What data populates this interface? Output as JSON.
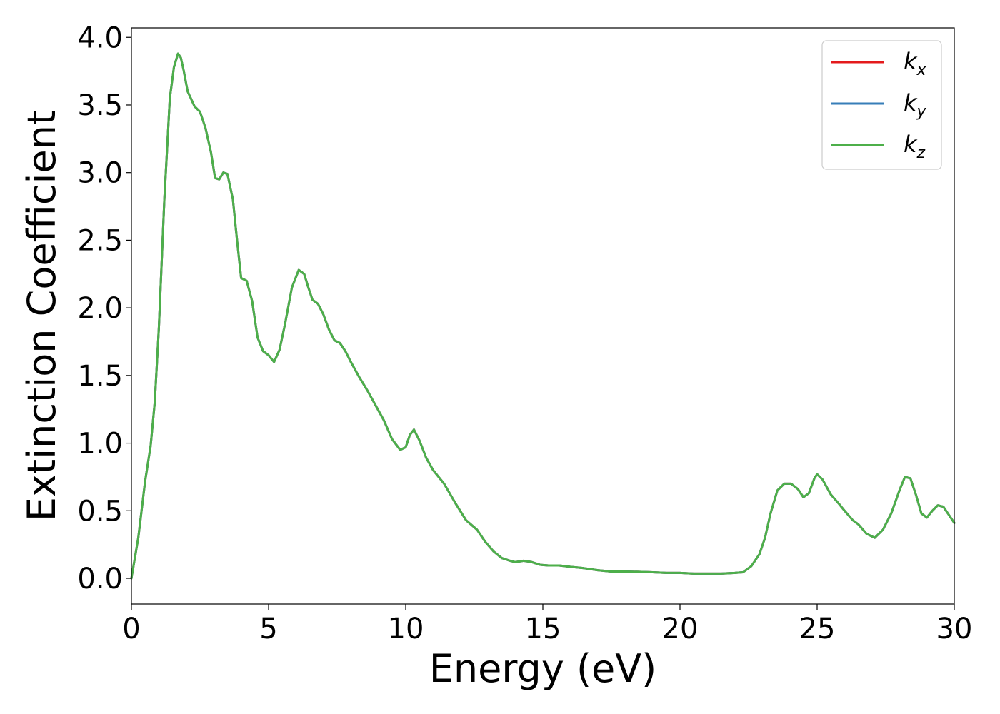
{
  "chart_data": {
    "type": "line",
    "title": "",
    "xlabel": "Energy (eV)",
    "ylabel": "Extinction Coefficient",
    "xlim": [
      0,
      30
    ],
    "ylim": [
      -0.19,
      4.07
    ],
    "xticks": [
      0,
      5,
      10,
      15,
      20,
      25,
      30
    ],
    "xtick_labels": [
      "0",
      "5",
      "10",
      "15",
      "20",
      "25",
      "30"
    ],
    "yticks": [
      0.0,
      0.5,
      1.0,
      1.5,
      2.0,
      2.5,
      3.0,
      3.5,
      4.0
    ],
    "ytick_labels": [
      "0.0",
      "0.5",
      "1.0",
      "1.5",
      "2.0",
      "2.5",
      "3.0",
      "3.5",
      "4.0"
    ],
    "grid": false,
    "legend_position": "top-right",
    "x": [
      0,
      0.25,
      0.5,
      0.7,
      0.85,
      1.0,
      1.2,
      1.4,
      1.55,
      1.7,
      1.8,
      1.9,
      2.05,
      2.3,
      2.5,
      2.7,
      2.9,
      3.05,
      3.2,
      3.35,
      3.5,
      3.7,
      3.85,
      4.0,
      4.2,
      4.4,
      4.6,
      4.8,
      5.0,
      5.2,
      5.4,
      5.6,
      5.85,
      6.1,
      6.3,
      6.45,
      6.6,
      6.8,
      7.0,
      7.2,
      7.4,
      7.6,
      7.8,
      8.0,
      8.3,
      8.6,
      8.9,
      9.2,
      9.5,
      9.8,
      10.0,
      10.15,
      10.3,
      10.5,
      10.75,
      11.0,
      11.4,
      11.8,
      12.2,
      12.6,
      12.9,
      13.2,
      13.5,
      13.8,
      14.0,
      14.3,
      14.6,
      14.9,
      15.2,
      15.6,
      16.0,
      16.5,
      17.0,
      17.5,
      18.0,
      18.5,
      19.0,
      19.5,
      20.0,
      20.5,
      21.0,
      21.5,
      22.0,
      22.3,
      22.6,
      22.9,
      23.1,
      23.3,
      23.55,
      23.8,
      24.05,
      24.3,
      24.5,
      24.7,
      24.9,
      25.0,
      25.2,
      25.5,
      25.8,
      26.0,
      26.3,
      26.5,
      26.8,
      27.1,
      27.4,
      27.7,
      28.0,
      28.2,
      28.4,
      28.6,
      28.8,
      29.0,
      29.2,
      29.4,
      29.6,
      29.8,
      30.0
    ],
    "series": [
      {
        "name": "k_x",
        "color": "#e41a1c",
        "values": [
          0.0,
          0.3,
          0.72,
          0.98,
          1.3,
          1.85,
          2.8,
          3.55,
          3.78,
          3.88,
          3.85,
          3.76,
          3.6,
          3.49,
          3.45,
          3.33,
          3.15,
          2.96,
          2.95,
          3.0,
          2.99,
          2.8,
          2.5,
          2.22,
          2.2,
          2.05,
          1.78,
          1.68,
          1.65,
          1.6,
          1.69,
          1.88,
          2.15,
          2.28,
          2.25,
          2.15,
          2.06,
          2.03,
          1.95,
          1.84,
          1.76,
          1.74,
          1.68,
          1.6,
          1.49,
          1.39,
          1.28,
          1.17,
          1.03,
          0.95,
          0.97,
          1.06,
          1.1,
          1.02,
          0.89,
          0.8,
          0.7,
          0.56,
          0.43,
          0.36,
          0.27,
          0.2,
          0.15,
          0.13,
          0.12,
          0.13,
          0.12,
          0.1,
          0.095,
          0.095,
          0.085,
          0.075,
          0.06,
          0.05,
          0.05,
          0.048,
          0.045,
          0.04,
          0.04,
          0.035,
          0.035,
          0.035,
          0.04,
          0.045,
          0.09,
          0.18,
          0.3,
          0.48,
          0.65,
          0.7,
          0.7,
          0.66,
          0.6,
          0.63,
          0.74,
          0.77,
          0.73,
          0.62,
          0.55,
          0.5,
          0.43,
          0.4,
          0.33,
          0.3,
          0.36,
          0.48,
          0.65,
          0.75,
          0.74,
          0.62,
          0.48,
          0.45,
          0.5,
          0.54,
          0.53,
          0.47,
          0.41
        ]
      },
      {
        "name": "k_y",
        "color": "#377eb8",
        "values": [
          0.0,
          0.3,
          0.72,
          0.98,
          1.3,
          1.85,
          2.8,
          3.55,
          3.78,
          3.88,
          3.85,
          3.76,
          3.6,
          3.49,
          3.45,
          3.33,
          3.15,
          2.96,
          2.95,
          3.0,
          2.99,
          2.8,
          2.5,
          2.22,
          2.2,
          2.05,
          1.78,
          1.68,
          1.65,
          1.6,
          1.69,
          1.88,
          2.15,
          2.28,
          2.25,
          2.15,
          2.06,
          2.03,
          1.95,
          1.84,
          1.76,
          1.74,
          1.68,
          1.6,
          1.49,
          1.39,
          1.28,
          1.17,
          1.03,
          0.95,
          0.97,
          1.06,
          1.1,
          1.02,
          0.89,
          0.8,
          0.7,
          0.56,
          0.43,
          0.36,
          0.27,
          0.2,
          0.15,
          0.13,
          0.12,
          0.13,
          0.12,
          0.1,
          0.095,
          0.095,
          0.085,
          0.075,
          0.06,
          0.05,
          0.05,
          0.048,
          0.045,
          0.04,
          0.04,
          0.035,
          0.035,
          0.035,
          0.04,
          0.045,
          0.09,
          0.18,
          0.3,
          0.48,
          0.65,
          0.7,
          0.7,
          0.66,
          0.6,
          0.63,
          0.74,
          0.77,
          0.73,
          0.62,
          0.55,
          0.5,
          0.43,
          0.4,
          0.33,
          0.3,
          0.36,
          0.48,
          0.65,
          0.75,
          0.74,
          0.62,
          0.48,
          0.45,
          0.5,
          0.54,
          0.53,
          0.47,
          0.41
        ]
      },
      {
        "name": "k_z",
        "color": "#4daf4a",
        "values": [
          0.0,
          0.3,
          0.72,
          0.98,
          1.3,
          1.85,
          2.8,
          3.55,
          3.78,
          3.88,
          3.85,
          3.76,
          3.6,
          3.49,
          3.45,
          3.33,
          3.15,
          2.96,
          2.95,
          3.0,
          2.99,
          2.8,
          2.5,
          2.22,
          2.2,
          2.05,
          1.78,
          1.68,
          1.65,
          1.6,
          1.69,
          1.88,
          2.15,
          2.28,
          2.25,
          2.15,
          2.06,
          2.03,
          1.95,
          1.84,
          1.76,
          1.74,
          1.68,
          1.6,
          1.49,
          1.39,
          1.28,
          1.17,
          1.03,
          0.95,
          0.97,
          1.06,
          1.1,
          1.02,
          0.89,
          0.8,
          0.7,
          0.56,
          0.43,
          0.36,
          0.27,
          0.2,
          0.15,
          0.13,
          0.12,
          0.13,
          0.12,
          0.1,
          0.095,
          0.095,
          0.085,
          0.075,
          0.06,
          0.05,
          0.05,
          0.048,
          0.045,
          0.04,
          0.04,
          0.035,
          0.035,
          0.035,
          0.04,
          0.045,
          0.09,
          0.18,
          0.3,
          0.48,
          0.65,
          0.7,
          0.7,
          0.66,
          0.6,
          0.63,
          0.74,
          0.77,
          0.73,
          0.62,
          0.55,
          0.5,
          0.43,
          0.4,
          0.33,
          0.3,
          0.36,
          0.48,
          0.65,
          0.75,
          0.74,
          0.62,
          0.48,
          0.45,
          0.5,
          0.54,
          0.53,
          0.47,
          0.41
        ]
      }
    ],
    "legend": [
      {
        "base": "k",
        "sub": "x",
        "color": "#e41a1c"
      },
      {
        "base": "k",
        "sub": "y",
        "color": "#377eb8"
      },
      {
        "base": "k",
        "sub": "z",
        "color": "#4daf4a"
      }
    ]
  }
}
